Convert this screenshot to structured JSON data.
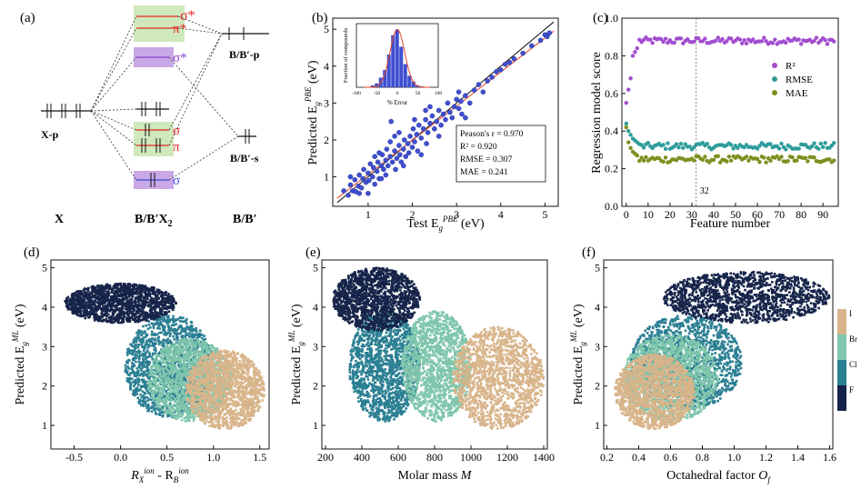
{
  "panel_a": {
    "label": "(a)",
    "col_x": "X",
    "col_bx": "B/B′X",
    "col_bx_sub": "2",
    "col_b": "B/B′",
    "xp": "X-p",
    "bp": "B/B′-p",
    "bs": "B/B′-s",
    "sigma_star": "σ*",
    "pi_star": "π*",
    "sigma_star2": "σ*",
    "sigma1": "σ",
    "pi1": "π",
    "sigma2": "σ",
    "colors": {
      "red": "#e8241f",
      "purple": "#8a3fd1",
      "blue": "#3a4fd8",
      "green_box": "#cfe9bd",
      "purple_box": "#c9a8e6"
    }
  },
  "chart_data": [
    {
      "id": "b",
      "type": "scatter",
      "label": "(b)",
      "xlabel": "Test E_g^PBE (eV)",
      "ylabel": "Predicted E_g^PBE (eV)",
      "xlim": [
        0.2,
        5.3
      ],
      "ylim": [
        0.2,
        5.3
      ],
      "xticks": [
        1,
        2,
        3,
        4,
        5
      ],
      "yticks": [
        1,
        2,
        3,
        4,
        5
      ],
      "point_color": "#3f4fd0",
      "fit_line": {
        "x": [
          0.3,
          5.2
        ],
        "y": [
          0.42,
          4.95
        ],
        "color": "#e8452a"
      },
      "ideal_line": {
        "x": [
          0.3,
          5.2
        ],
        "y": [
          0.3,
          5.2
        ],
        "color": "#111111"
      },
      "stats": [
        "Peason's r = 0.970",
        "R² = 0.920",
        "RMSE = 0.307",
        "MAE = 0.241"
      ],
      "points": [
        [
          0.45,
          0.62
        ],
        [
          0.55,
          0.5
        ],
        [
          0.6,
          0.78
        ],
        [
          0.65,
          0.62
        ],
        [
          0.7,
          0.92
        ],
        [
          0.72,
          0.6
        ],
        [
          0.78,
          0.75
        ],
        [
          0.8,
          1.05
        ],
        [
          0.85,
          0.7
        ],
        [
          0.88,
          0.95
        ],
        [
          0.9,
          1.2
        ],
        [
          0.95,
          0.85
        ],
        [
          1.0,
          1.1
        ],
        [
          1.02,
          0.9
        ],
        [
          1.05,
          1.35
        ],
        [
          1.1,
          1.0
        ],
        [
          1.12,
          1.25
        ],
        [
          1.15,
          1.55
        ],
        [
          1.2,
          1.15
        ],
        [
          1.22,
          1.4
        ],
        [
          1.25,
          0.95
        ],
        [
          1.3,
          1.3
        ],
        [
          1.32,
          1.6
        ],
        [
          1.35,
          1.2
        ],
        [
          1.4,
          1.45
        ],
        [
          1.42,
          1.75
        ],
        [
          1.45,
          1.3
        ],
        [
          1.5,
          1.55
        ],
        [
          1.52,
          2.5
        ],
        [
          1.55,
          1.4
        ],
        [
          1.6,
          1.7
        ],
        [
          1.62,
          1.2
        ],
        [
          1.65,
          1.5
        ],
        [
          1.7,
          1.85
        ],
        [
          1.72,
          1.6
        ],
        [
          1.75,
          1.4
        ],
        [
          1.8,
          1.75
        ],
        [
          1.82,
          2.0
        ],
        [
          1.85,
          1.55
        ],
        [
          1.9,
          1.9
        ],
        [
          1.92,
          1.65
        ],
        [
          1.95,
          2.1
        ],
        [
          2.0,
          1.8
        ],
        [
          2.02,
          2.3
        ],
        [
          2.05,
          1.95
        ],
        [
          2.1,
          2.15
        ],
        [
          2.12,
          1.7
        ],
        [
          2.15,
          2.4
        ],
        [
          2.2,
          2.05
        ],
        [
          2.25,
          2.3
        ],
        [
          2.3,
          2.55
        ],
        [
          2.32,
          1.9
        ],
        [
          2.35,
          2.2
        ],
        [
          2.4,
          2.45
        ],
        [
          2.45,
          2.65
        ],
        [
          2.5,
          2.3
        ],
        [
          2.55,
          2.5
        ],
        [
          2.6,
          2.8
        ],
        [
          2.65,
          2.4
        ],
        [
          2.7,
          2.7
        ],
        [
          2.75,
          2.55
        ],
        [
          2.8,
          3.0
        ],
        [
          2.85,
          2.75
        ],
        [
          2.9,
          2.6
        ],
        [
          2.95,
          2.9
        ],
        [
          3.0,
          3.1
        ],
        [
          3.05,
          2.85
        ],
        [
          3.1,
          3.05
        ],
        [
          3.12,
          2.7
        ],
        [
          3.2,
          3.2
        ],
        [
          3.3,
          3.0
        ],
        [
          3.4,
          3.35
        ],
        [
          3.5,
          3.5
        ],
        [
          3.6,
          3.3
        ],
        [
          3.7,
          3.6
        ],
        [
          3.8,
          3.7
        ],
        [
          3.9,
          3.85
        ],
        [
          4.0,
          3.9
        ],
        [
          4.1,
          4.05
        ],
        [
          4.2,
          4.1
        ],
        [
          4.3,
          4.2
        ],
        [
          4.5,
          4.35
        ],
        [
          4.7,
          4.55
        ],
        [
          4.9,
          4.7
        ],
        [
          5.0,
          4.85
        ],
        [
          5.05,
          4.8
        ],
        [
          5.1,
          4.9
        ],
        [
          0.6,
          1.0
        ],
        [
          1.0,
          0.55
        ],
        [
          1.3,
          0.95
        ],
        [
          1.5,
          1.95
        ],
        [
          1.8,
          1.3
        ],
        [
          2.2,
          1.6
        ],
        [
          2.4,
          2.9
        ],
        [
          2.6,
          2.1
        ],
        [
          1.25,
          1.65
        ],
        [
          1.6,
          2.1
        ],
        [
          2.05,
          2.55
        ],
        [
          3.05,
          3.3
        ],
        [
          3.2,
          2.6
        ],
        [
          0.8,
          0.55
        ],
        [
          1.15,
          0.8
        ],
        [
          1.4,
          1.05
        ],
        [
          1.7,
          2.2
        ],
        [
          2.3,
          2.8
        ]
      ]
    },
    {
      "id": "b-inset",
      "type": "bar",
      "xlabel": "% Error",
      "ylabel": "Fraction of compounds",
      "xticks": [
        -100,
        -50,
        0,
        50,
        100
      ],
      "bar_color": "#3f4fd0",
      "curve_color": "#e8452a",
      "bins": [
        -60,
        -50,
        -40,
        -30,
        -20,
        -10,
        0,
        10,
        20,
        30,
        40,
        50,
        60
      ],
      "values": [
        0.01,
        0.02,
        0.05,
        0.09,
        0.17,
        0.27,
        0.3,
        0.21,
        0.12,
        0.06,
        0.03,
        0.01,
        0.005
      ]
    },
    {
      "id": "c",
      "type": "scatter",
      "label": "(c)",
      "xlabel": "Feature number",
      "ylabel": "Regression model score",
      "xlim": [
        -2,
        97
      ],
      "ylim": [
        0.0,
        1.0
      ],
      "xticks": [
        0,
        10,
        20,
        30,
        40,
        50,
        60,
        70,
        80,
        90
      ],
      "yticks": [
        0.0,
        0.2,
        0.4,
        0.6,
        0.8,
        1.0
      ],
      "vline": {
        "x": 32,
        "label": "32"
      },
      "legend_position": "center-right",
      "series": [
        {
          "name": "R²",
          "color": "#a24ccf",
          "level": 0.88,
          "start": [
            0.55,
            0.62,
            0.68,
            0.8,
            0.82,
            0.84
          ]
        },
        {
          "name": "RMSE",
          "color": "#2e9d9b",
          "level": 0.32,
          "start": [
            0.44,
            0.4,
            0.38,
            0.36,
            0.35,
            0.34
          ]
        },
        {
          "name": "MAE",
          "color": "#7f8f1f",
          "level": 0.25,
          "start": [
            0.42,
            0.34,
            0.31,
            0.29,
            0.28,
            0.27
          ]
        }
      ]
    },
    {
      "id": "d",
      "type": "scatter",
      "label": "(d)",
      "xlabel": "R_X^ion - R_B^ion",
      "ylabel": "Predicted E_g^ML (eV)",
      "xlim": [
        -0.75,
        1.6
      ],
      "ylim": [
        0.4,
        5.2
      ],
      "xticks": [
        -0.5,
        0.0,
        0.5,
        1.0,
        1.5
      ],
      "yticks": [
        1,
        2,
        3,
        4,
        5
      ],
      "clusters": [
        {
          "name": "F",
          "color": "#16244a",
          "cx": [
            -0.6,
            0.6
          ],
          "cy": [
            3.6,
            4.6
          ]
        },
        {
          "name": "Cl",
          "color": "#2a7f93",
          "cx": [
            0.05,
            1.0
          ],
          "cy": [
            1.2,
            3.8
          ]
        },
        {
          "name": "Br",
          "color": "#7fc6ac",
          "cx": [
            0.3,
            1.2
          ],
          "cy": [
            1.1,
            3.2
          ]
        },
        {
          "name": "I",
          "color": "#d8b48a",
          "cx": [
            0.7,
            1.55
          ],
          "cy": [
            0.9,
            2.9
          ]
        }
      ]
    },
    {
      "id": "e",
      "type": "scatter",
      "label": "(e)",
      "xlabel": "Molar mass M",
      "ylabel": "Predicted E_g^ML (eV)",
      "xlim": [
        180,
        1420
      ],
      "ylim": [
        0.4,
        5.2
      ],
      "xticks": [
        200,
        400,
        600,
        800,
        1000,
        1200,
        1400
      ],
      "yticks": [
        1,
        2,
        3,
        4,
        5
      ],
      "clusters": [
        {
          "name": "F",
          "color": "#16244a",
          "cx": [
            240,
            720
          ],
          "cy": [
            3.4,
            5.0
          ]
        },
        {
          "name": "Cl",
          "color": "#2a7f93",
          "cx": [
            330,
            720
          ],
          "cy": [
            1.1,
            3.9
          ]
        },
        {
          "name": "Br",
          "color": "#7fc6ac",
          "cx": [
            620,
            1000
          ],
          "cy": [
            1.1,
            3.9
          ]
        },
        {
          "name": "I",
          "color": "#d8b48a",
          "cx": [
            900,
            1400
          ],
          "cy": [
            0.9,
            3.5
          ]
        }
      ]
    },
    {
      "id": "f",
      "type": "scatter",
      "label": "(f)",
      "xlabel": "Octahedral factor O_f",
      "ylabel": "Predicted E_g^ML (eV)",
      "xlim": [
        0.18,
        1.62
      ],
      "ylim": [
        0.4,
        5.2
      ],
      "xticks": [
        0.2,
        0.4,
        0.6,
        0.8,
        1.0,
        1.2,
        1.4,
        1.6
      ],
      "yticks": [
        1,
        2,
        3,
        4,
        5
      ],
      "clusters": [
        {
          "name": "F",
          "color": "#16244a",
          "cx": [
            0.55,
            1.6
          ],
          "cy": [
            3.6,
            4.9
          ]
        },
        {
          "name": "Cl",
          "color": "#2a7f93",
          "cx": [
            0.35,
            1.05
          ],
          "cy": [
            1.4,
            3.8
          ]
        },
        {
          "name": "Br",
          "color": "#7fc6ac",
          "cx": [
            0.3,
            0.9
          ],
          "cy": [
            1.1,
            3.3
          ]
        },
        {
          "name": "I",
          "color": "#d8b48a",
          "cx": [
            0.25,
            0.75
          ],
          "cy": [
            0.9,
            2.8
          ]
        }
      ],
      "colorbar": {
        "labels": [
          "I",
          "Br",
          "Cl",
          "F"
        ],
        "colors": [
          "#d8b48a",
          "#7fc6ac",
          "#2a7f93",
          "#16244a"
        ]
      }
    }
  ],
  "labels": {
    "b_xlabel_main": "Test E",
    "b_xlabel_sub": "g",
    "b_xlabel_sup": "PBE",
    "b_xlabel_unit": " (eV)",
    "b_ylabel_main": "Predicted E",
    "b_ylabel_sub": "g",
    "b_ylabel_sup": "PBE",
    "b_ylabel_unit": " (eV)",
    "ml_ylabel_main": "Predicted E",
    "ml_ylabel_sub": "g",
    "ml_ylabel_sup": "ML",
    "ml_ylabel_unit": " (eV)",
    "d_x_r1": "R",
    "d_x_sub1": "X",
    "d_x_sup1": "ion",
    "d_x_mid": " - R",
    "d_x_sub2": "B",
    "d_x_sup2": "ion",
    "e_x_main": "Molar mass ",
    "e_x_var": "M",
    "f_x_main": "Octahedral factor ",
    "f_x_var": "O",
    "f_x_sub": "f"
  }
}
